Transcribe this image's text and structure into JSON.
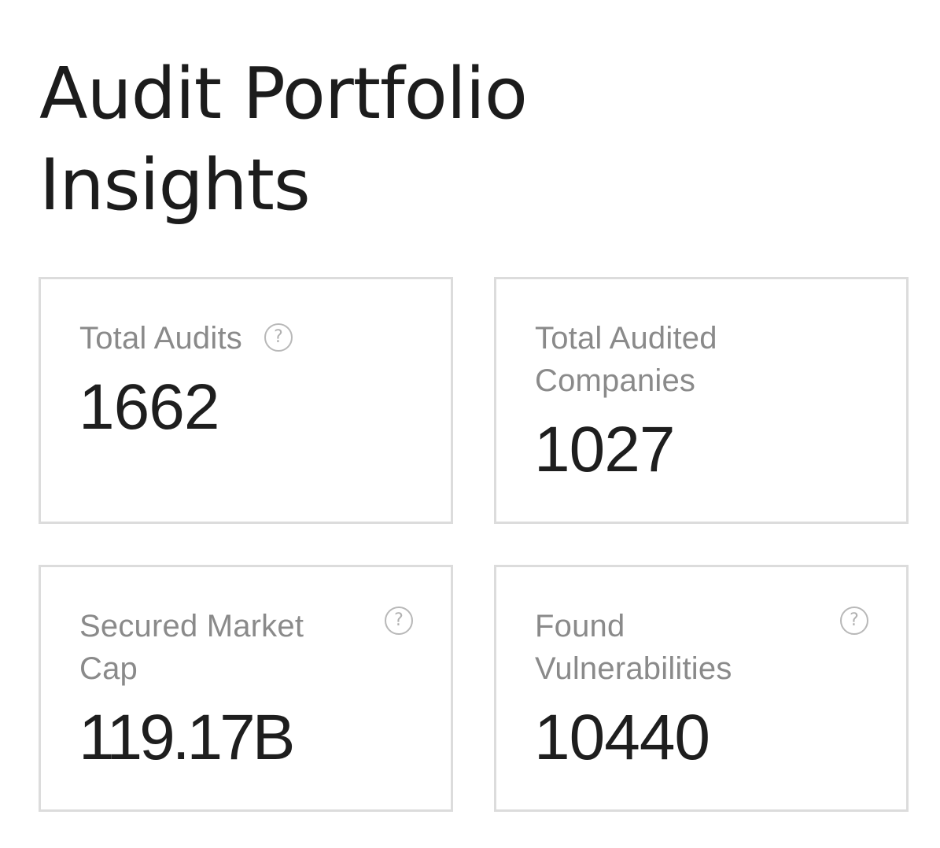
{
  "title": {
    "line1": "Audit Portfolio",
    "line2": "Insights"
  },
  "help_icon_glyph": "?",
  "icons": {
    "help": "question-circle-icon"
  },
  "colors": {
    "border": "#dcdcdc",
    "label": "#8a8a8a",
    "value": "#1e1e1e",
    "icon": "#b8b8b8"
  },
  "stats": [
    {
      "label": "Total Audits",
      "value": "1662",
      "has_help": true
    },
    {
      "label": "Total Audited Companies",
      "value": "1027",
      "has_help": false
    },
    {
      "label": "Secured Market Cap",
      "value": "119.17B",
      "has_help": true
    },
    {
      "label": "Found Vulnerabilities",
      "value": "10440",
      "has_help": true
    }
  ]
}
